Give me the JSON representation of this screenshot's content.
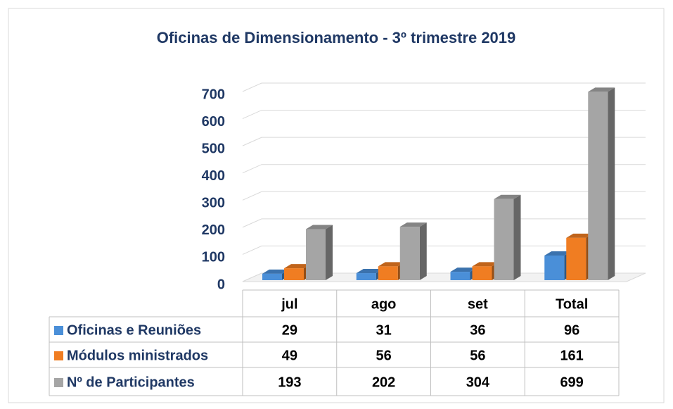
{
  "chart_data": {
    "type": "bar3d",
    "title": "Oficinas de Dimensionamento - 3º trimestre 2019",
    "categories": [
      "jul",
      "ago",
      "set",
      "Total"
    ],
    "series": [
      {
        "name": "Oficinas e Reuniões",
        "color": "#4a8fd8",
        "values": [
          29,
          31,
          36,
          96
        ]
      },
      {
        "name": "Módulos ministrados",
        "color": "#f07d22",
        "values": [
          49,
          56,
          56,
          161
        ]
      },
      {
        "name": "Nº de Participantes",
        "color": "#a5a5a5",
        "values": [
          193,
          202,
          304,
          699
        ]
      }
    ],
    "ylim": [
      0,
      700
    ],
    "yticks": [
      0,
      100,
      200,
      300,
      400,
      500,
      600,
      700
    ],
    "grid": true
  }
}
